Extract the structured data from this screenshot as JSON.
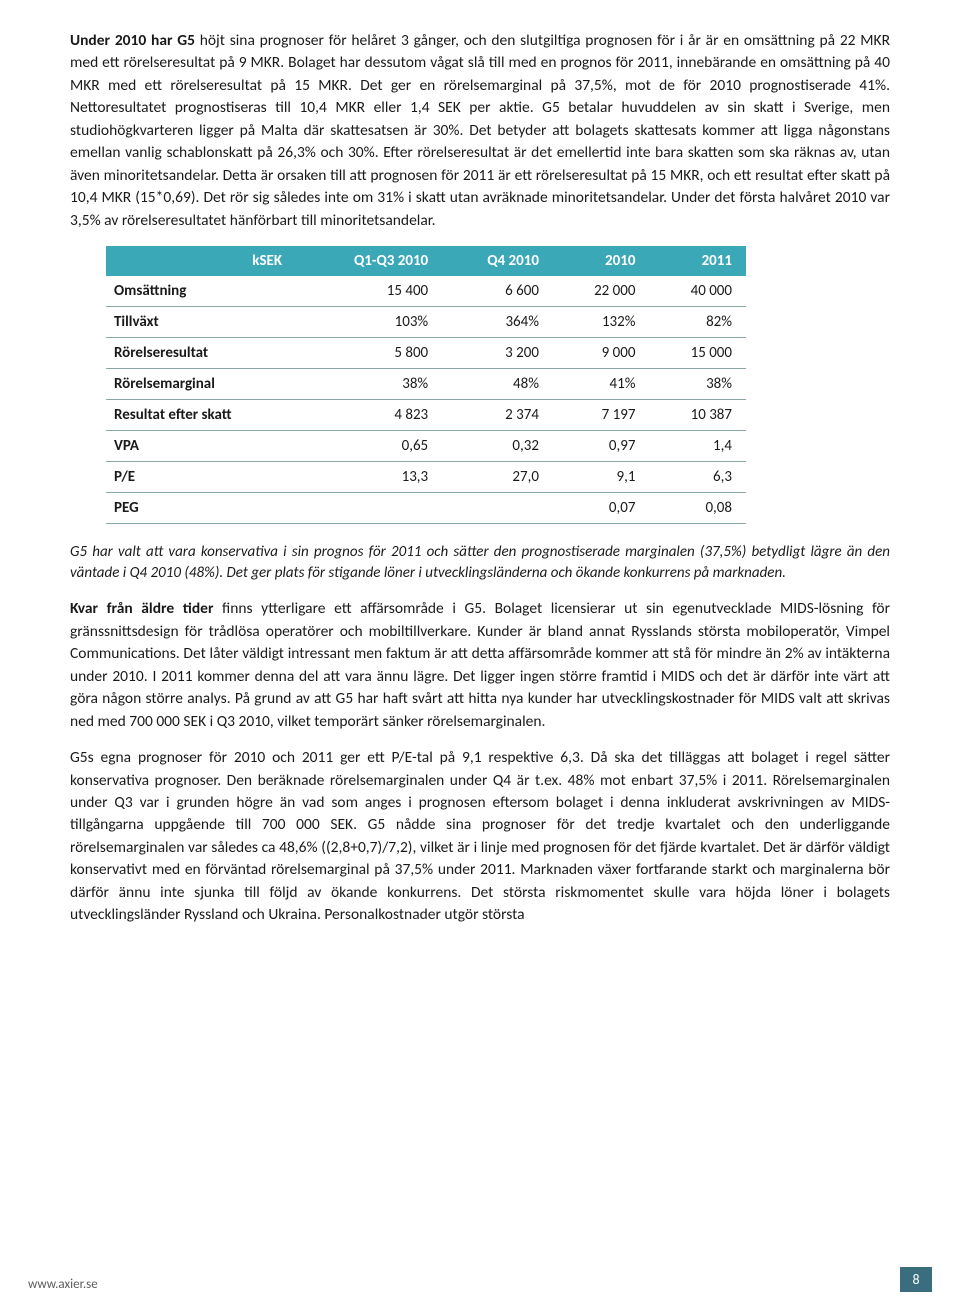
{
  "para1_lead": "Under 2010 har G5",
  "para1_rest": " höjt sina prognoser för helåret 3 gånger, och den slutgiltiga prognosen för i år är en omsättning på 22 MKR med ett rörelseresultat på 9 MKR. Bolaget har dessutom vågat slå till med en prognos för 2011, innebärande en omsättning på 40 MKR med ett rörelseresultat på 15 MKR. Det ger en rörelsemarginal på 37,5%, mot de för 2010 prognostiserade 41%. Nettoresultatet prognostiseras till 10,4 MKR eller 1,4 SEK per aktie. G5 betalar huvuddelen av sin skatt i Sverige, men studiohögkvarteren ligger på Malta där skattesatsen är 30%. Det betyder att bolagets skattesats kommer att ligga någonstans emellan vanlig schablonskatt på 26,3% och 30%. Efter rörelseresultat är det emellertid inte bara skatten som ska räknas av, utan även minoritetsandelar. Detta är orsaken till att prognosen för 2011 är ett rörelseresultat på 15 MKR, och ett resultat efter skatt på 10,4 MKR (15*0,69). Det rör sig således inte om 31% i skatt utan avräknade minoritetsandelar. Under det första halvåret 2010 var 3,5% av rörelseresultatet hänförbart till minoritetsandelar.",
  "table": {
    "header_unit": "kSEK",
    "columns": [
      "Q1-Q3 2010",
      "Q4 2010",
      "2010",
      "2011"
    ],
    "rows": [
      {
        "label": "Omsättning",
        "cells": [
          "15 400",
          "6 600",
          "22 000",
          "40 000"
        ]
      },
      {
        "label": "Tillväxt",
        "cells": [
          "103%",
          "364%",
          "132%",
          "82%"
        ]
      },
      {
        "label": "Rörelseresultat",
        "cells": [
          "5 800",
          "3 200",
          "9 000",
          "15 000"
        ]
      },
      {
        "label": "Rörelsemarginal",
        "cells": [
          "38%",
          "48%",
          "41%",
          "38%"
        ]
      },
      {
        "label": "Resultat efter skatt",
        "cells": [
          "4 823",
          "2 374",
          "7 197",
          "10 387"
        ]
      },
      {
        "label": "VPA",
        "cells": [
          "0,65",
          "0,32",
          "0,97",
          "1,4"
        ]
      },
      {
        "label": "P/E",
        "cells": [
          "13,3",
          "27,0",
          "9,1",
          "6,3"
        ]
      },
      {
        "label": "PEG",
        "cells": [
          "",
          "",
          "0,07",
          "0,08"
        ]
      }
    ],
    "header_bg": "#3ba8b8",
    "header_fg": "#ffffff",
    "border_color": "#8aa8a8"
  },
  "italic_note": "G5 har valt att vara konservativa i sin prognos för 2011 och sätter den prognostiserade marginalen (37,5%) betydligt lägre än den väntade i Q4 2010 (48%). Det ger plats för stigande löner i utvecklingsländerna och ökande konkurrens på marknaden.",
  "para2_lead": "Kvar från äldre tider",
  "para2_rest": " finns ytterligare ett affärsområde i G5. Bolaget licensierar ut sin egenutvecklade MIDS-lösning för gränssnittsdesign för trådlösa operatörer och mobiltillverkare. Kunder är bland annat Rysslands största mobiloperatör, Vimpel Communications. Det låter väldigt intressant men faktum är att detta affärsområde kommer att stå för mindre än 2% av intäkterna under 2010. I 2011 kommer denna del att vara ännu lägre. Det ligger ingen större framtid i MIDS och det är därför inte värt att göra någon större analys. På grund av att G5 har haft svårt att hitta nya kunder har utvecklingskostnader för MIDS valt att skrivas ned med 700 000 SEK i Q3 2010, vilket temporärt sänker rörelsemarginalen.",
  "para3": "G5s egna prognoser för 2010 och 2011 ger ett P/E-tal på 9,1 respektive 6,3. Då ska det tilläggas att bolaget i regel sätter konservativa prognoser. Den beräknade rörelsemarginalen under Q4 är t.ex. 48% mot enbart 37,5% i 2011. Rörelsemarginalen under Q3 var i grunden högre än vad som anges i prognosen eftersom bolaget i denna inkluderat avskrivningen av MIDS-tillgångarna uppgående till 700 000 SEK. G5 nådde sina prognoser för det tredje kvartalet och den underliggande rörelsemarginalen var således ca 48,6% ((2,8+0,7)/7,2), vilket är i linje med prognosen för det fjärde kvartalet. Det är därför väldigt konservativt med en förväntad rörelsemarginal på 37,5% under 2011. Marknaden växer fortfarande starkt och marginalerna bör därför ännu inte sjunka till följd av ökande konkurrens. Det största riskmomentet skulle vara höjda löner i bolagets utvecklingsländer Ryssland och Ukraina. Personalkostnader utgör största",
  "footer": {
    "url": "www.axier.se",
    "page": "8",
    "badge_bg": "#3a6e7e"
  }
}
